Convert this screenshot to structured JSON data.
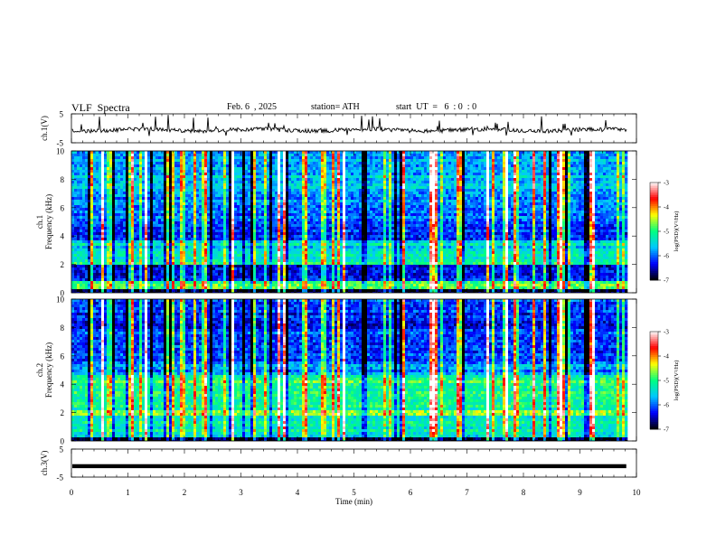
{
  "header": {
    "title": "VLF  Spectra",
    "date": "Feb. 6  , 2025",
    "station": "station= ATH",
    "start": "start  UT  =   6  : 0  : 0"
  },
  "chart_data": [
    {
      "type": "line",
      "name": "ch1-waveform",
      "ylabel": "ch.1(V)",
      "ylim": [
        -5,
        5
      ],
      "yticks": [
        {
          "value": 5,
          "label": "5"
        },
        {
          "value": -5,
          "label": "-5"
        }
      ],
      "baseline": -0.6,
      "xlim": [
        0,
        10
      ]
    },
    {
      "type": "heatmap",
      "name": "ch1-spectrogram",
      "ylabel": "ch.1\nFrequency  (kHz)",
      "ylim": [
        0,
        10
      ],
      "yticks": [
        0,
        2,
        4,
        6,
        8,
        10
      ],
      "xlim": [
        0,
        9.82
      ],
      "colorbar": {
        "label": "log(PSD)(V²/Hz)",
        "range": [
          -7,
          -3
        ],
        "ticks": [
          -3,
          -4,
          -5,
          -6,
          -7
        ],
        "colors": [
          "#000000",
          "#0000ff",
          "#00c8ff",
          "#00ff80",
          "#ffff00",
          "#ff0000",
          "#ffffff"
        ]
      }
    },
    {
      "type": "heatmap",
      "name": "ch2-spectrogram",
      "ylabel": "ch.2\nFrequency  (kHz)",
      "ylim": [
        0,
        10
      ],
      "yticks": [
        0,
        2,
        4,
        6,
        8,
        10
      ],
      "xlim": [
        0,
        9.82
      ],
      "colorbar": {
        "label": "log(PSD)(V²/Hz)",
        "range": [
          -7,
          -3
        ],
        "ticks": [
          -3,
          -4,
          -5,
          -6,
          -7
        ],
        "colors": [
          "#000000",
          "#0000ff",
          "#00c8ff",
          "#00ff80",
          "#ffff00",
          "#ff0000",
          "#ffffff"
        ]
      }
    },
    {
      "type": "line",
      "name": "ch3-waveform",
      "ylabel": "ch.3(V)",
      "ylim": [
        -5,
        5
      ],
      "yticks": [
        {
          "value": 5,
          "label": "5"
        },
        {
          "value": -5,
          "label": "-5"
        }
      ],
      "baseline": -1.1,
      "xlim": [
        0,
        10
      ],
      "xlabel": "Time  (min)",
      "xticks": [
        0,
        1,
        2,
        3,
        4,
        5,
        6,
        7,
        8,
        9,
        10
      ]
    }
  ]
}
